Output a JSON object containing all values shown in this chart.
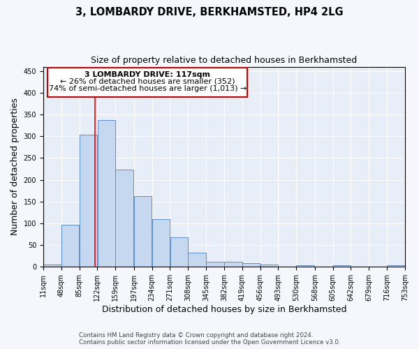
{
  "title": "3, LOMBARDY DRIVE, BERKHAMSTED, HP4 2LG",
  "subtitle": "Size of property relative to detached houses in Berkhamsted",
  "xlabel": "Distribution of detached houses by size in Berkhamsted",
  "ylabel": "Number of detached properties",
  "footer_line1": "Contains HM Land Registry data © Crown copyright and database right 2024.",
  "footer_line2": "Contains public sector information licensed under the Open Government Licence v3.0.",
  "bar_left_edges": [
    11,
    48,
    85,
    122,
    159,
    197,
    234,
    271,
    308,
    345,
    382,
    419,
    456,
    493,
    530,
    568,
    605,
    642,
    679,
    716
  ],
  "bar_heights": [
    5,
    97,
    303,
    338,
    224,
    163,
    109,
    68,
    33,
    12,
    11,
    8,
    5,
    0,
    3,
    0,
    4,
    0,
    0,
    3
  ],
  "bin_width": 37,
  "bar_color": "#c5d8f0",
  "bar_edge_color": "#5b8fc9",
  "red_line_x": 117,
  "annotation_text_line1": "3 LOMBARDY DRIVE: 117sqm",
  "annotation_text_line2": "← 26% of detached houses are smaller (352)",
  "annotation_text_line3": "74% of semi-detached houses are larger (1,013) →",
  "annotation_box_color": "#ffffff",
  "annotation_box_edge_color": "#cc0000",
  "ylim": [
    0,
    460
  ],
  "yticks": [
    0,
    50,
    100,
    150,
    200,
    250,
    300,
    350,
    400,
    450
  ],
  "tick_labels": [
    "11sqm",
    "48sqm",
    "85sqm",
    "122sqm",
    "159sqm",
    "197sqm",
    "234sqm",
    "271sqm",
    "308sqm",
    "345sqm",
    "382sqm",
    "419sqm",
    "456sqm",
    "493sqm",
    "530sqm",
    "568sqm",
    "605sqm",
    "642sqm",
    "679sqm",
    "716sqm",
    "753sqm"
  ],
  "background_color": "#f5f7fc",
  "plot_bg_color": "#e8eef8",
  "grid_color": "#ffffff",
  "title_fontsize": 10.5,
  "subtitle_fontsize": 9,
  "axis_label_fontsize": 9,
  "tick_fontsize": 7,
  "ann_fontsize": 8
}
